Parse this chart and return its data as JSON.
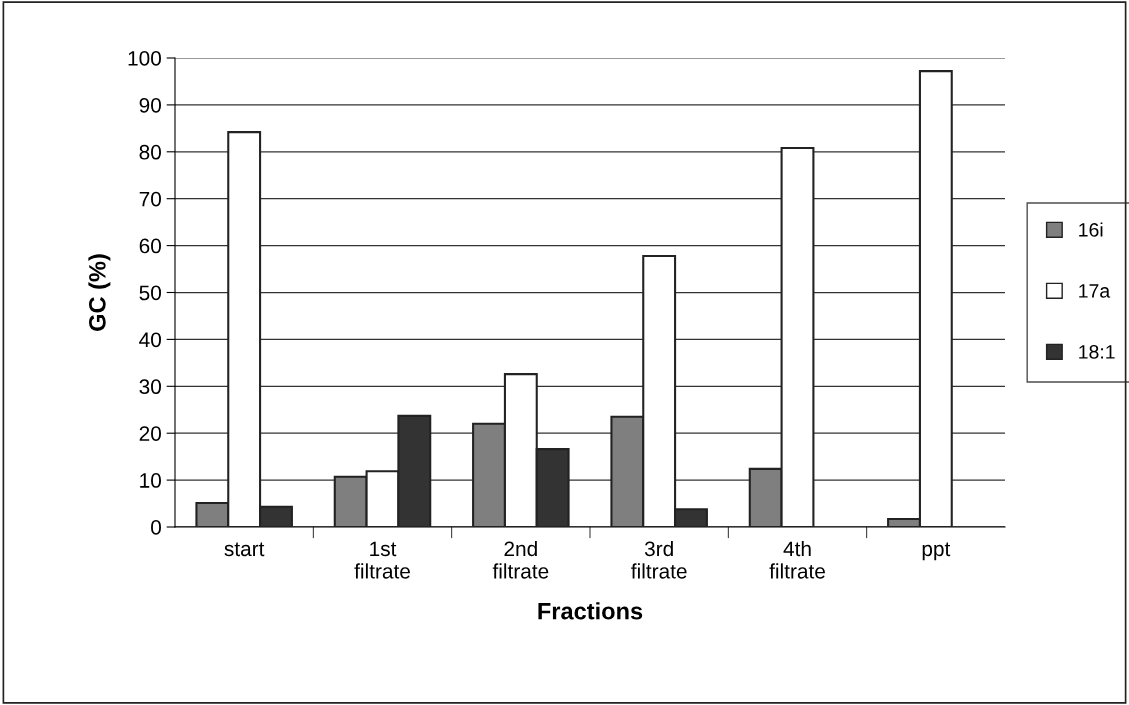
{
  "chart_data": {
    "type": "bar",
    "xlabel": "Fractions",
    "ylabel": "GC (%)",
    "categories": [
      "start",
      "1st\nfiltrate",
      "2nd\nfiltrate",
      "3rd\nfiltrate",
      "4th\nfiltrate",
      "ppt"
    ],
    "series": [
      {
        "name": "16i",
        "color": "#7f7f7f",
        "values": [
          5.1,
          10.7,
          22.0,
          23.5,
          12.4,
          1.7
        ]
      },
      {
        "name": "17a",
        "color": "#ffffff",
        "values": [
          84.2,
          11.9,
          32.6,
          57.8,
          80.8,
          97.2
        ]
      },
      {
        "name": "18:1",
        "color": "#333333",
        "values": [
          4.3,
          23.7,
          16.6,
          3.8,
          null,
          null
        ]
      }
    ],
    "ylim": [
      0,
      100
    ],
    "yticks": [
      0,
      10,
      20,
      30,
      40,
      50,
      60,
      70,
      80,
      90,
      100
    ],
    "grid": "y",
    "legend": "right"
  }
}
